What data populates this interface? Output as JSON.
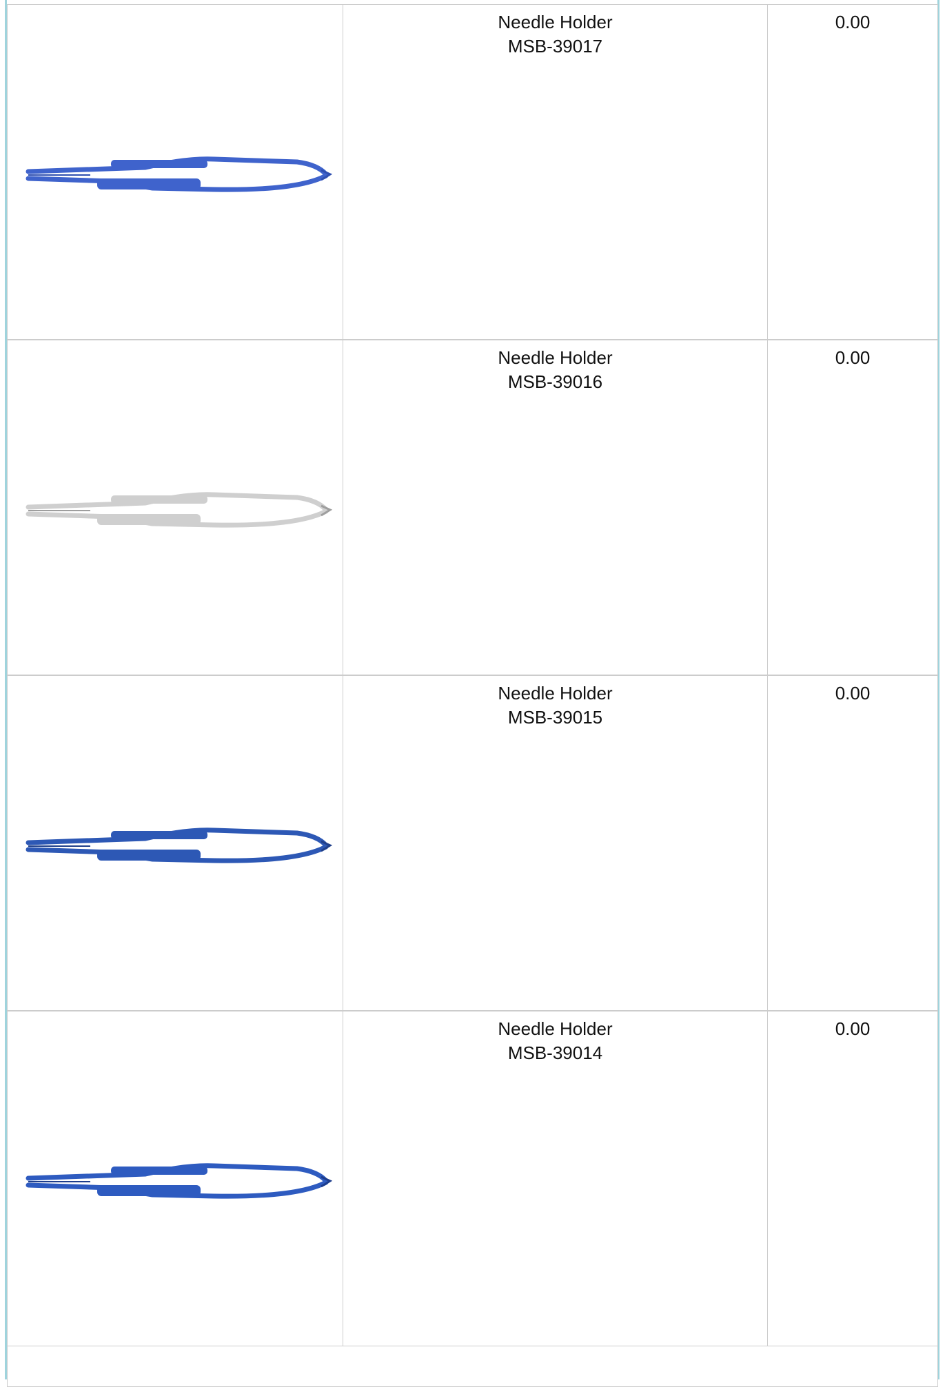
{
  "rows": [
    {
      "name": "Needle Holder",
      "code": "MSB-39017",
      "price": "0.00"
    },
    {
      "name": "Needle Holder",
      "code": "MSB-39016",
      "price": "0.00"
    },
    {
      "name": "Needle Holder",
      "code": "MSB-39015",
      "price": "0.00"
    },
    {
      "name": "Needle Holder",
      "code": "MSB-39014",
      "price": "0.00"
    }
  ]
}
